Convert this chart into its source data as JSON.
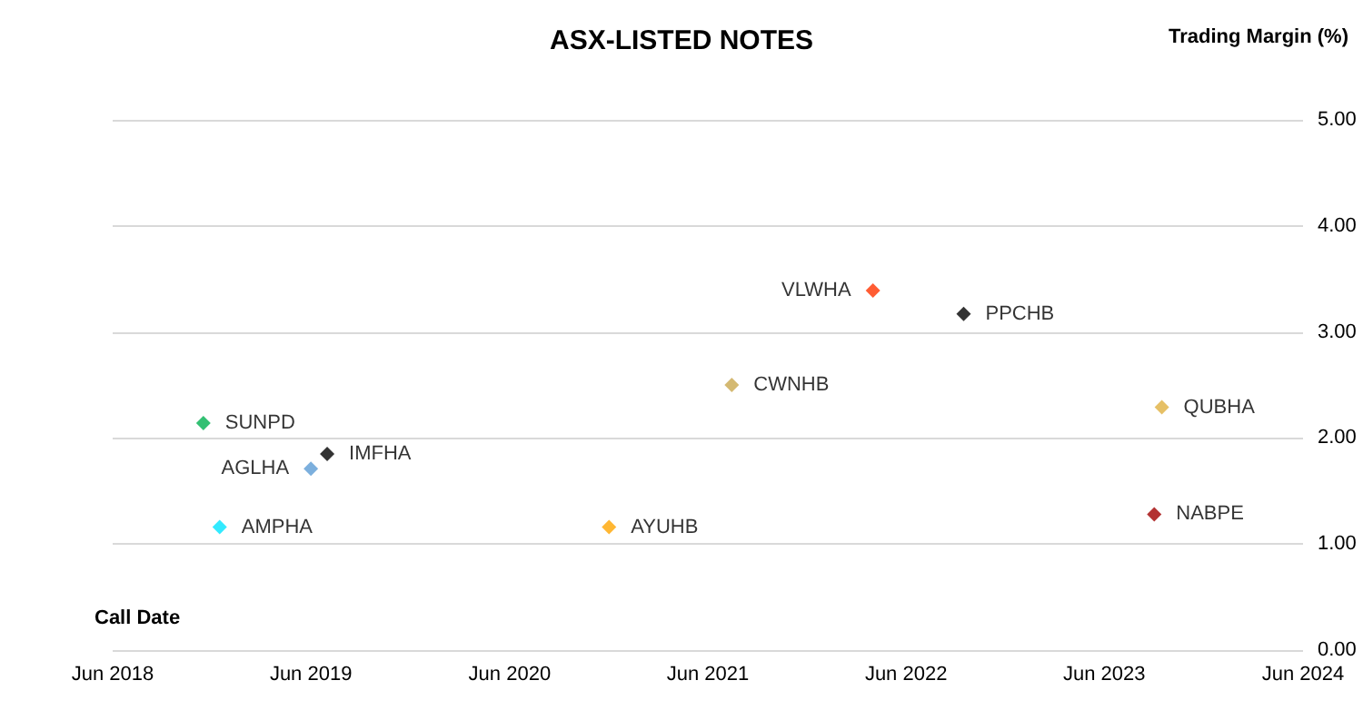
{
  "chart_data": {
    "type": "scatter",
    "title": "ASX-LISTED NOTES",
    "xlabel": "Call Date",
    "ylabel": "Trading Margin (%)",
    "xlim": [
      "2018-06-01",
      "2024-06-01"
    ],
    "xticks": [
      {
        "value": "2018-06-01",
        "label": "Jun 2018"
      },
      {
        "value": "2019-06-01",
        "label": "Jun 2019"
      },
      {
        "value": "2020-06-01",
        "label": "Jun 2020"
      },
      {
        "value": "2021-06-01",
        "label": "Jun 2021"
      },
      {
        "value": "2022-06-01",
        "label": "Jun 2022"
      },
      {
        "value": "2023-06-01",
        "label": "Jun 2023"
      },
      {
        "value": "2024-06-01",
        "label": "Jun 2024"
      }
    ],
    "ylim": [
      0,
      5
    ],
    "yticks": [
      {
        "value": 0,
        "label": "0.00"
      },
      {
        "value": 1,
        "label": "1.00"
      },
      {
        "value": 2,
        "label": "2.00"
      },
      {
        "value": 3,
        "label": "3.00"
      },
      {
        "value": 4,
        "label": "4.00"
      },
      {
        "value": 5,
        "label": "5.00"
      }
    ],
    "grid": "y",
    "legend": false,
    "marker": "diamond",
    "series": [
      {
        "name": "SUNPD",
        "color": "#00b050",
        "x": [
          "2018-11-15"
        ],
        "values": [
          2.14
        ]
      },
      {
        "name": "AMPHA",
        "color": "#00e5ff",
        "x": [
          "2018-12-15"
        ],
        "values": [
          1.16
        ]
      },
      {
        "name": "AGLHA",
        "color": "#5b9bd5",
        "x": [
          "2019-06-01"
        ],
        "values": [
          1.71
        ]
      },
      {
        "name": "IMFHA",
        "color": "#000000",
        "x": [
          "2019-07-01"
        ],
        "values": [
          1.85
        ]
      },
      {
        "name": "AYUHB",
        "color": "#ffa500",
        "x": [
          "2020-12-01"
        ],
        "values": [
          1.16
        ]
      },
      {
        "name": "CWNHB",
        "color": "#c9a74f",
        "x": [
          "2021-07-15"
        ],
        "values": [
          2.5
        ]
      },
      {
        "name": "VLWHA",
        "color": "#ff3300",
        "x": [
          "2022-04-01"
        ],
        "values": [
          3.39
        ]
      },
      {
        "name": "PPCHB",
        "color": "#000000",
        "x": [
          "2022-09-15"
        ],
        "values": [
          3.17
        ]
      },
      {
        "name": "QUBHA",
        "color": "#e0b040",
        "x": [
          "2023-09-15"
        ],
        "values": [
          2.29
        ]
      },
      {
        "name": "NABPE",
        "color": "#a00000",
        "x": [
          "2023-09-01"
        ],
        "values": [
          1.28
        ]
      }
    ]
  }
}
